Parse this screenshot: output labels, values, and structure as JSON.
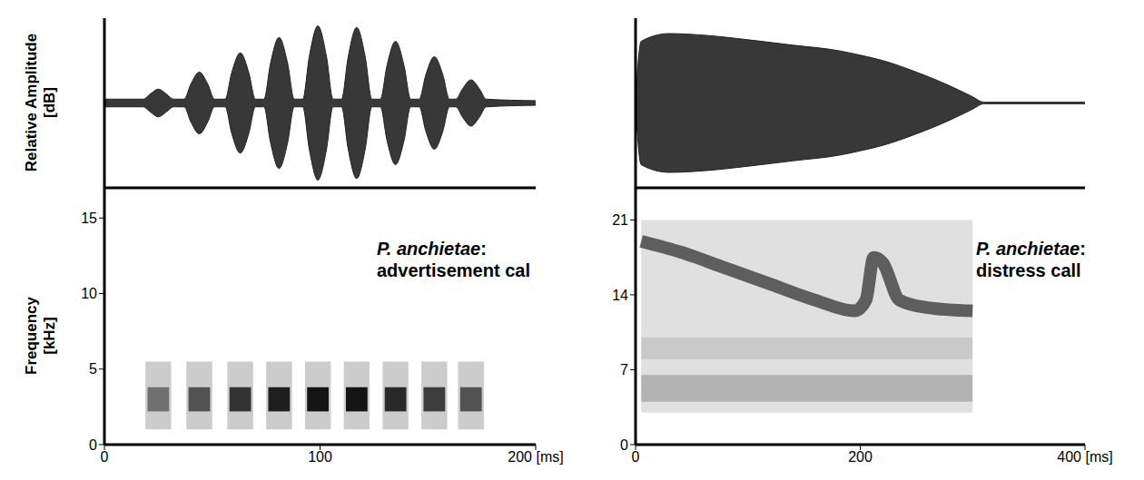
{
  "chart_data": [
    {
      "type": "area",
      "ylabel": "Relative Amplitude [dB]",
      "color": "#222222",
      "xlim": [
        0,
        200
      ],
      "ylim": [
        -1.1,
        1.1
      ],
      "tick_labels": false,
      "x": [
        0,
        18,
        21,
        25,
        29,
        32,
        37,
        40,
        44,
        48,
        51,
        56,
        59,
        63,
        67,
        70,
        74,
        77,
        81,
        85,
        88,
        92,
        95,
        99,
        103,
        106,
        110,
        113,
        117,
        121,
        124,
        128,
        131,
        135,
        139,
        142,
        146,
        149,
        153,
        157,
        160,
        163,
        166,
        170,
        174,
        177,
        200
      ],
      "max": [
        0.05,
        0.05,
        0.11,
        0.18,
        0.11,
        0.05,
        0.05,
        0.24,
        0.4,
        0.24,
        0.05,
        0.05,
        0.39,
        0.65,
        0.39,
        0.05,
        0.05,
        0.51,
        0.85,
        0.51,
        0.05,
        0.05,
        0.6,
        1,
        0.6,
        0.05,
        0.05,
        0.59,
        0.98,
        0.59,
        0.05,
        0.05,
        0.48,
        0.8,
        0.48,
        0.05,
        0.05,
        0.36,
        0.6,
        0.36,
        0.05,
        0.05,
        0.18,
        0.3,
        0.18,
        0.05,
        0.03
      ],
      "min": [
        -0.05,
        -0.05,
        -0.11,
        -0.18,
        -0.11,
        -0.05,
        -0.05,
        -0.24,
        -0.4,
        -0.24,
        -0.05,
        -0.05,
        -0.39,
        -0.65,
        -0.39,
        -0.05,
        -0.05,
        -0.51,
        -0.85,
        -0.51,
        -0.05,
        -0.05,
        -0.6,
        -1,
        -0.6,
        -0.05,
        -0.05,
        -0.59,
        -0.98,
        -0.59,
        -0.05,
        -0.05,
        -0.48,
        -0.8,
        -0.48,
        -0.05,
        -0.05,
        -0.36,
        -0.6,
        -0.36,
        -0.05,
        -0.05,
        -0.18,
        -0.3,
        -0.18,
        -0.05,
        -0.03
      ]
    },
    {
      "type": "spectrogram",
      "title": "P. anchietae: advertisement cal",
      "ylabel": "Frequency [kHz]",
      "color": "#000000",
      "xlim": [
        0,
        200
      ],
      "xticks": [
        0,
        100,
        {
          "value": 200,
          "label": "200 [ms]"
        }
      ],
      "ylim": [
        0,
        17
      ],
      "yticks": [
        0,
        5,
        10,
        15
      ],
      "cells": [
        {
          "x0": 19,
          "x1": 31,
          "y0": 1,
          "y1": 5.5,
          "value": 0.2
        },
        {
          "x0": 20,
          "x1": 30,
          "y0": 2.2,
          "y1": 3.8,
          "value": 0.45
        },
        {
          "x0": 38,
          "x1": 50,
          "y0": 1,
          "y1": 5.5,
          "value": 0.2
        },
        {
          "x0": 39,
          "x1": 49,
          "y0": 2.2,
          "y1": 3.8,
          "value": 0.6
        },
        {
          "x0": 57,
          "x1": 69,
          "y0": 1,
          "y1": 5.5,
          "value": 0.2
        },
        {
          "x0": 58,
          "x1": 68,
          "y0": 2.2,
          "y1": 3.8,
          "value": 0.75
        },
        {
          "x0": 75,
          "x1": 87,
          "y0": 1,
          "y1": 5.5,
          "value": 0.2
        },
        {
          "x0": 76,
          "x1": 86,
          "y0": 2.2,
          "y1": 3.8,
          "value": 0.85
        },
        {
          "x0": 93,
          "x1": 105,
          "y0": 1,
          "y1": 5.5,
          "value": 0.2
        },
        {
          "x0": 94,
          "x1": 104,
          "y0": 2.2,
          "y1": 3.8,
          "value": 0.9
        },
        {
          "x0": 111,
          "x1": 123,
          "y0": 1,
          "y1": 5.5,
          "value": 0.2
        },
        {
          "x0": 112,
          "x1": 122,
          "y0": 2.2,
          "y1": 3.8,
          "value": 0.9
        },
        {
          "x0": 129,
          "x1": 141,
          "y0": 1,
          "y1": 5.5,
          "value": 0.2
        },
        {
          "x0": 130,
          "x1": 140,
          "y0": 2.2,
          "y1": 3.8,
          "value": 0.8
        },
        {
          "x0": 147,
          "x1": 159,
          "y0": 1,
          "y1": 5.5,
          "value": 0.2
        },
        {
          "x0": 148,
          "x1": 158,
          "y0": 2.2,
          "y1": 3.8,
          "value": 0.7
        },
        {
          "x0": 164,
          "x1": 176,
          "y0": 1,
          "y1": 5.5,
          "value": 0.2
        },
        {
          "x0": 165,
          "x1": 175,
          "y0": 2.2,
          "y1": 3.8,
          "value": 0.6
        }
      ]
    },
    {
      "type": "area",
      "color": "#222222",
      "xlim": [
        0,
        400
      ],
      "ylim": [
        -1.1,
        1.1
      ],
      "tick_labels": false,
      "x": [
        0,
        5,
        30,
        60,
        100,
        140,
        180,
        200,
        220,
        250,
        280,
        300,
        310,
        400
      ],
      "max": [
        0.05,
        0.8,
        0.9,
        0.88,
        0.82,
        0.75,
        0.68,
        0.62,
        0.55,
        0.4,
        0.22,
        0.08,
        0.01,
        0.01
      ],
      "min": [
        -0.05,
        -0.8,
        -0.9,
        -0.88,
        -0.82,
        -0.75,
        -0.68,
        -0.62,
        -0.55,
        -0.4,
        -0.22,
        -0.08,
        -0.01,
        -0.01
      ]
    },
    {
      "type": "spectrogram",
      "title": "P. anchietae: distress call",
      "color": "#000000",
      "xlim": [
        0,
        400
      ],
      "xticks": [
        0,
        200,
        {
          "value": 400,
          "label": "400 [ms]"
        }
      ],
      "ylim": [
        0,
        24
      ],
      "yticks": [
        0,
        7,
        14,
        21
      ],
      "cells": [
        {
          "x0": 5,
          "x1": 300,
          "y0": 3,
          "y1": 21,
          "value": 0.12
        },
        {
          "x0": 5,
          "x1": 300,
          "y0": 4,
          "y1": 6.5,
          "value": 0.2
        },
        {
          "x0": 5,
          "x1": 300,
          "y0": 8,
          "y1": 10,
          "value": 0.1
        }
      ],
      "bands": [
        {
          "color": "#333333",
          "x": [
            5,
            40,
            80,
            120,
            160,
            195,
            205,
            212,
            220,
            235,
            260,
            300
          ],
          "values": [
            19,
            18,
            16.5,
            15,
            13.5,
            12.5,
            13.5,
            17.5,
            17,
            13.5,
            12.8,
            12.5
          ]
        }
      ]
    }
  ]
}
